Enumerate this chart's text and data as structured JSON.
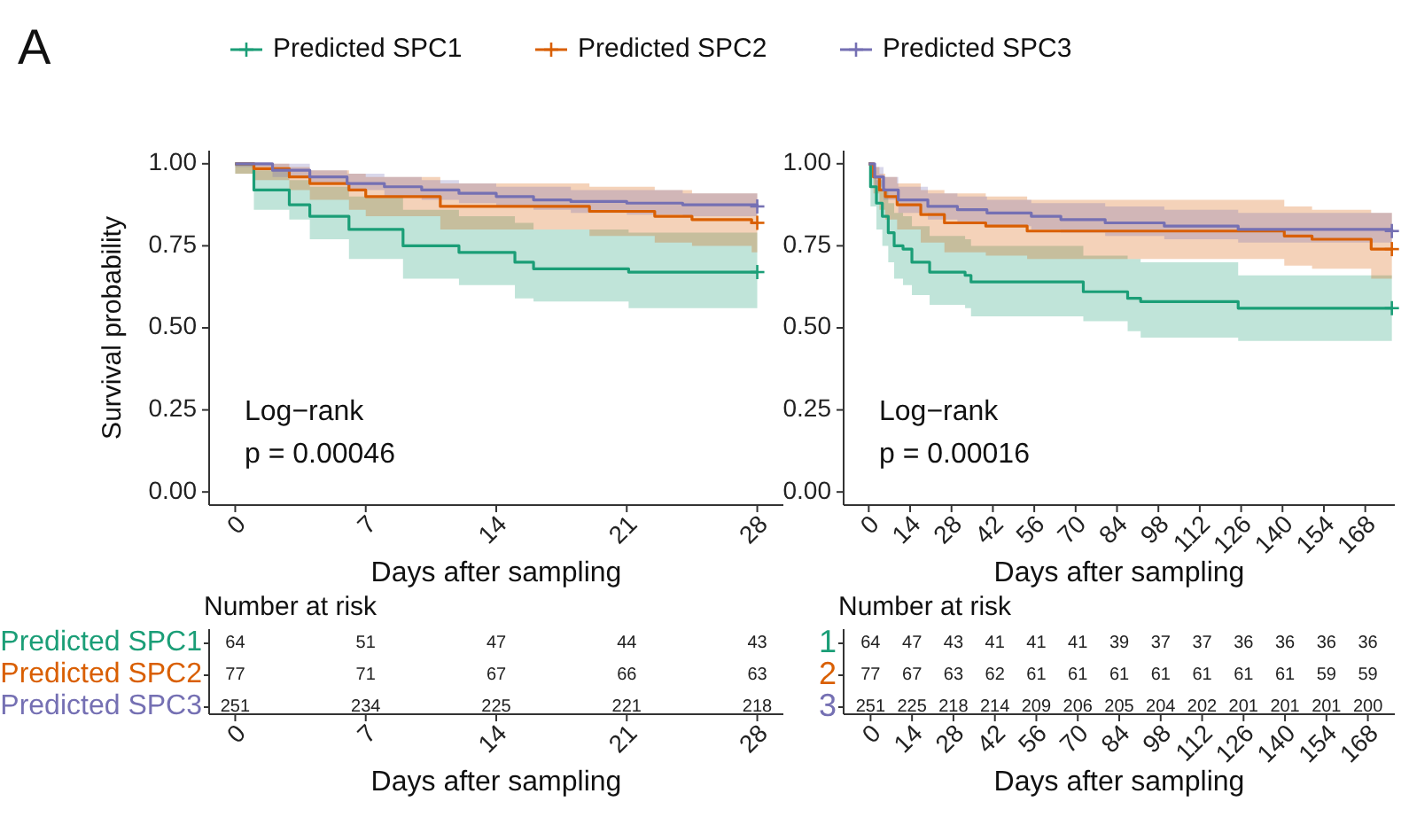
{
  "chart_data": [
    {
      "type": "step",
      "title": "A",
      "xlabel": "Days after sampling",
      "ylabel": "Survival probability",
      "annotations": [
        "Log−rank",
        "p = 0.00046"
      ],
      "legend": "top",
      "xlim": [
        -1.4,
        29.4
      ],
      "xticks": [
        0,
        7,
        14,
        21,
        28
      ],
      "ylim": [
        -0.04,
        1.04
      ],
      "yticks": [
        {
          "value": 0,
          "label": "0.00"
        },
        {
          "value": 0.25,
          "label": "0.25"
        },
        {
          "value": 0.5,
          "label": "0.50"
        },
        {
          "value": 0.75,
          "label": "0.75"
        },
        {
          "value": 1,
          "label": "1.00"
        }
      ],
      "series": [
        {
          "name": "Predicted SPC1",
          "color": "#1b9e77",
          "x": [
            0,
            1,
            2.9,
            4,
            6.1,
            9,
            12,
            15,
            16,
            21.1,
            28
          ],
          "values": [
            1,
            0.92,
            0.875,
            0.84,
            0.8,
            0.75,
            0.73,
            0.7,
            0.68,
            0.67,
            0.67
          ],
          "lower": [
            0.97,
            0.86,
            0.83,
            0.77,
            0.71,
            0.65,
            0.63,
            0.59,
            0.58,
            0.56,
            0.56
          ],
          "upper": [
            1,
            0.98,
            0.95,
            0.93,
            0.9,
            0.86,
            0.84,
            0.82,
            0.8,
            0.79,
            0.79
          ]
        },
        {
          "name": "Predicted SPC2",
          "color": "#d95f02",
          "x": [
            0,
            1,
            2.9,
            4,
            6.1,
            7,
            11,
            19,
            22.5,
            24.5,
            27.7,
            28
          ],
          "values": [
            1,
            0.985,
            0.96,
            0.94,
            0.92,
            0.9,
            0.87,
            0.855,
            0.84,
            0.83,
            0.82,
            0.82
          ],
          "lower": [
            0.97,
            0.95,
            0.92,
            0.89,
            0.86,
            0.84,
            0.8,
            0.78,
            0.76,
            0.75,
            0.73,
            0.73
          ],
          "upper": [
            1,
            1,
            0.99,
            0.98,
            0.97,
            0.96,
            0.94,
            0.93,
            0.92,
            0.91,
            0.91,
            0.91
          ]
        },
        {
          "name": "Predicted SPC3",
          "color": "#7570b3",
          "x": [
            0,
            2,
            4,
            6,
            8,
            10,
            12,
            14,
            16,
            18,
            21,
            24,
            28
          ],
          "values": [
            1,
            0.98,
            0.96,
            0.94,
            0.93,
            0.92,
            0.91,
            0.9,
            0.89,
            0.885,
            0.88,
            0.875,
            0.87
          ],
          "lower": [
            0.99,
            0.96,
            0.94,
            0.92,
            0.9,
            0.89,
            0.88,
            0.87,
            0.86,
            0.85,
            0.845,
            0.84,
            0.83
          ],
          "upper": [
            1,
            1,
            0.98,
            0.97,
            0.96,
            0.95,
            0.94,
            0.93,
            0.93,
            0.92,
            0.92,
            0.91,
            0.91
          ]
        }
      ]
    },
    {
      "type": "step",
      "xlabel": "Days after sampling",
      "annotations": [
        "Log−rank",
        "p = 0.00016"
      ],
      "xlim": [
        -8.5,
        178
      ],
      "xticks": [
        0,
        14,
        28,
        42,
        56,
        70,
        84,
        98,
        112,
        126,
        140,
        154,
        168
      ],
      "ylim": [
        -0.04,
        1.04
      ],
      "yticks": [
        {
          "value": 0,
          "label": "0.00"
        },
        {
          "value": 0.25,
          "label": "0.25"
        },
        {
          "value": 0.5,
          "label": "0.50"
        },
        {
          "value": 0.75,
          "label": "0.75"
        },
        {
          "value": 1,
          "label": "1.00"
        }
      ],
      "series": [
        {
          "color": "#1b9e77",
          "x": [
            0,
            0.6,
            2.6,
            4.6,
            6.6,
            8.6,
            11.6,
            14.6,
            20.6,
            32.6,
            34.6,
            72.6,
            87.6,
            92,
            125,
            177
          ],
          "values": [
            1,
            0.93,
            0.88,
            0.84,
            0.79,
            0.75,
            0.74,
            0.7,
            0.67,
            0.66,
            0.64,
            0.61,
            0.59,
            0.58,
            0.56,
            0.56
          ],
          "lower": [
            1,
            0.87,
            0.8,
            0.75,
            0.7,
            0.65,
            0.63,
            0.6,
            0.57,
            0.56,
            0.535,
            0.52,
            0.49,
            0.47,
            0.46,
            0.46
          ],
          "upper": [
            1,
            0.98,
            0.95,
            0.92,
            0.88,
            0.85,
            0.84,
            0.81,
            0.78,
            0.77,
            0.75,
            0.72,
            0.71,
            0.7,
            0.66,
            0.66
          ]
        },
        {
          "color": "#d95f02",
          "x": [
            0,
            1.6,
            3.6,
            5.6,
            9.6,
            17.6,
            25.6,
            39.6,
            53.6,
            140.6,
            150,
            170,
            177
          ],
          "values": [
            1,
            0.96,
            0.92,
            0.9,
            0.875,
            0.845,
            0.82,
            0.81,
            0.795,
            0.78,
            0.77,
            0.74,
            0.74
          ],
          "lower": [
            1,
            0.91,
            0.86,
            0.83,
            0.8,
            0.76,
            0.73,
            0.72,
            0.71,
            0.69,
            0.68,
            0.65,
            0.65
          ],
          "upper": [
            1,
            0.99,
            0.97,
            0.96,
            0.94,
            0.92,
            0.91,
            0.9,
            0.89,
            0.87,
            0.86,
            0.85,
            0.85
          ]
        },
        {
          "color": "#7570b3",
          "x": [
            0,
            2,
            5,
            10,
            20,
            30,
            40,
            55,
            65,
            80,
            100,
            125,
            177
          ],
          "values": [
            1,
            0.96,
            0.92,
            0.89,
            0.87,
            0.86,
            0.85,
            0.84,
            0.83,
            0.82,
            0.81,
            0.8,
            0.795
          ],
          "lower": [
            1,
            0.93,
            0.89,
            0.85,
            0.83,
            0.82,
            0.81,
            0.8,
            0.79,
            0.78,
            0.77,
            0.76,
            0.75
          ],
          "upper": [
            1,
            0.99,
            0.96,
            0.93,
            0.91,
            0.9,
            0.89,
            0.88,
            0.88,
            0.87,
            0.86,
            0.85,
            0.85
          ]
        }
      ]
    },
    {
      "type": "heatmap",
      "title": "Number at risk",
      "xlabel": "Days after sampling",
      "data_labels": true,
      "categories": [
        "0",
        "7",
        "14",
        "21",
        "28"
      ],
      "y_categories": [
        "Predicted SPC1",
        "Predicted SPC2",
        "Predicted SPC3"
      ],
      "colors": [
        "#1b9e77",
        "#d95f02",
        "#7570b3"
      ],
      "cells": [
        [
          64,
          51,
          47,
          44,
          43
        ],
        [
          77,
          71,
          67,
          66,
          63
        ],
        [
          251,
          234,
          225,
          221,
          218
        ]
      ]
    },
    {
      "type": "heatmap",
      "title": "Number at risk",
      "xlabel": "Days after sampling",
      "data_labels": true,
      "categories": [
        "0",
        "14",
        "28",
        "42",
        "56",
        "70",
        "84",
        "98",
        "112",
        "126",
        "140",
        "154",
        "168"
      ],
      "y_categories": [
        "1",
        "2",
        "3"
      ],
      "colors": [
        "#1b9e77",
        "#d95f02",
        "#7570b3"
      ],
      "cells": [
        [
          64,
          47,
          43,
          41,
          41,
          41,
          39,
          37,
          37,
          36,
          36,
          36,
          36
        ],
        [
          77,
          67,
          63,
          62,
          61,
          61,
          61,
          61,
          61,
          61,
          61,
          59,
          59
        ],
        [
          251,
          225,
          218,
          214,
          209,
          206,
          205,
          204,
          202,
          201,
          201,
          201,
          200
        ]
      ]
    }
  ]
}
